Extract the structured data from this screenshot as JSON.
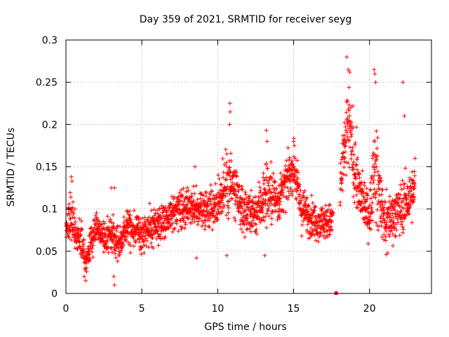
{
  "chart_data": {
    "type": "scatter",
    "title": "Day 359 of 2021, SRMTID for receiver seyg",
    "xlabel": "GPS time / hours",
    "ylabel": "SRMTID / TECUs",
    "xlim": [
      0,
      24.08
    ],
    "ylim": [
      0,
      0.3
    ],
    "x_ticks": [
      0,
      5,
      10,
      15,
      20
    ],
    "x_tick_labels": [
      "0",
      "5",
      "10",
      "15",
      "20"
    ],
    "y_ticks": [
      0,
      0.05,
      0.1,
      0.15,
      0.2,
      0.25,
      0.3
    ],
    "y_tick_labels": [
      "0",
      "0.05",
      "0.1",
      "0.15",
      "0.2",
      "0.25",
      "0.3"
    ],
    "grid": true,
    "series": [
      {
        "name": "SRMTID",
        "marker": "plus",
        "color": "#ff0000",
        "x_range": [
          0,
          23
        ],
        "trend": [
          {
            "x": 0.0,
            "y": 0.075,
            "spread": 0.02
          },
          {
            "x": 0.3,
            "y": 0.09,
            "spread": 0.03
          },
          {
            "x": 0.7,
            "y": 0.07,
            "spread": 0.02
          },
          {
            "x": 1.0,
            "y": 0.065,
            "spread": 0.025
          },
          {
            "x": 1.3,
            "y": 0.035,
            "spread": 0.012
          },
          {
            "x": 1.6,
            "y": 0.06,
            "spread": 0.02
          },
          {
            "x": 2.0,
            "y": 0.08,
            "spread": 0.015
          },
          {
            "x": 2.5,
            "y": 0.065,
            "spread": 0.015
          },
          {
            "x": 3.0,
            "y": 0.07,
            "spread": 0.02
          },
          {
            "x": 3.5,
            "y": 0.06,
            "spread": 0.018
          },
          {
            "x": 4.0,
            "y": 0.08,
            "spread": 0.02
          },
          {
            "x": 5.0,
            "y": 0.07,
            "spread": 0.02
          },
          {
            "x": 6.0,
            "y": 0.08,
            "spread": 0.022
          },
          {
            "x": 7.0,
            "y": 0.095,
            "spread": 0.02
          },
          {
            "x": 8.0,
            "y": 0.1,
            "spread": 0.02
          },
          {
            "x": 9.0,
            "y": 0.1,
            "spread": 0.022
          },
          {
            "x": 10.0,
            "y": 0.105,
            "spread": 0.025
          },
          {
            "x": 10.7,
            "y": 0.14,
            "spread": 0.05
          },
          {
            "x": 11.5,
            "y": 0.1,
            "spread": 0.025
          },
          {
            "x": 12.5,
            "y": 0.095,
            "spread": 0.025
          },
          {
            "x": 13.2,
            "y": 0.12,
            "spread": 0.04
          },
          {
            "x": 14.0,
            "y": 0.11,
            "spread": 0.025
          },
          {
            "x": 15.0,
            "y": 0.15,
            "spread": 0.025
          },
          {
            "x": 15.5,
            "y": 0.1,
            "spread": 0.025
          },
          {
            "x": 16.5,
            "y": 0.085,
            "spread": 0.02
          },
          {
            "x": 17.5,
            "y": 0.085,
            "spread": 0.02
          },
          {
            "x": 18.0,
            "y": 0.12,
            "spread": 0.035
          },
          {
            "x": 18.6,
            "y": 0.2,
            "spread": 0.05
          },
          {
            "x": 19.3,
            "y": 0.12,
            "spread": 0.035
          },
          {
            "x": 20.0,
            "y": 0.09,
            "spread": 0.02
          },
          {
            "x": 20.3,
            "y": 0.15,
            "spread": 0.06
          },
          {
            "x": 21.0,
            "y": 0.085,
            "spread": 0.025
          },
          {
            "x": 22.0,
            "y": 0.1,
            "spread": 0.03
          },
          {
            "x": 23.0,
            "y": 0.12,
            "spread": 0.03
          }
        ],
        "highlights": [
          {
            "x": 18.5,
            "y": 0.28
          },
          {
            "x": 18.6,
            "y": 0.265
          },
          {
            "x": 18.7,
            "y": 0.262
          },
          {
            "x": 20.3,
            "y": 0.265
          },
          {
            "x": 20.35,
            "y": 0.26
          },
          {
            "x": 20.4,
            "y": 0.25
          },
          {
            "x": 22.2,
            "y": 0.25
          },
          {
            "x": 22.3,
            "y": 0.21
          },
          {
            "x": 10.8,
            "y": 0.225
          },
          {
            "x": 10.82,
            "y": 0.215
          },
          {
            "x": 10.78,
            "y": 0.2
          },
          {
            "x": 13.2,
            "y": 0.193
          },
          {
            "x": 13.25,
            "y": 0.18
          },
          {
            "x": 15.0,
            "y": 0.18
          },
          {
            "x": 15.05,
            "y": 0.175
          },
          {
            "x": 8.5,
            "y": 0.15
          },
          {
            "x": 0.35,
            "y": 0.138
          },
          {
            "x": 0.4,
            "y": 0.133
          },
          {
            "x": 3.0,
            "y": 0.125
          },
          {
            "x": 3.2,
            "y": 0.125
          },
          {
            "x": 1.3,
            "y": 0.015
          },
          {
            "x": 1.2,
            "y": 0.02
          },
          {
            "x": 3.2,
            "y": 0.01
          },
          {
            "x": 3.15,
            "y": 0.02
          },
          {
            "x": 8.6,
            "y": 0.042
          },
          {
            "x": 10.6,
            "y": 0.045
          },
          {
            "x": 13.1,
            "y": 0.045
          },
          {
            "x": 21.2,
            "y": 0.048
          },
          {
            "x": 21.1,
            "y": 0.046
          },
          {
            "x": 23.0,
            "y": 0.16
          }
        ],
        "marker_zero": {
          "x": 17.8,
          "y": 0.0
        }
      }
    ]
  }
}
